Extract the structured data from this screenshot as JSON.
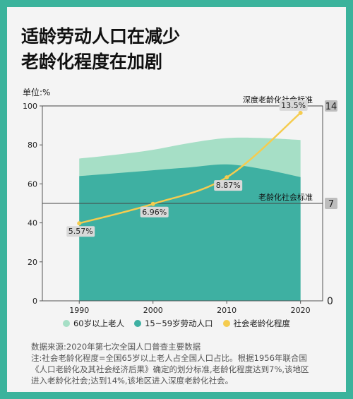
{
  "title_lines": [
    "适龄劳动人口在减少",
    "老龄化程度在加剧"
  ],
  "unit_label": "单位:%",
  "legend": [
    {
      "label": "60岁以上老人",
      "color": "#a6dfc6"
    },
    {
      "label": "15~59岁劳动人口",
      "color": "#3eb0a2"
    },
    {
      "label": "社会老龄化程度",
      "color": "#f5cc4f"
    }
  ],
  "notes": [
    "数据来源:2020年第七次全国人口普查主要数据",
    "注:社会老龄化程度=全国65岁以上老人占全国人口占比。根据1956年联合国",
    "《人口老龄化及其社会经济后果》确定的划分标准,老龄化程度达到7%,该地区",
    "进入老龄化社会;达到14%,该地区进入深度老龄化社会。"
  ],
  "chart_data": {
    "type": "area",
    "x": [
      1990,
      2000,
      2010,
      2020
    ],
    "xlim": [
      1985,
      2023
    ],
    "ylim": [
      0,
      100
    ],
    "yticks": [
      0,
      20,
      40,
      60,
      80,
      100
    ],
    "y2lim": [
      0,
      14
    ],
    "y2ticks": [
      "0",
      "7",
      "14"
    ],
    "series": [
      {
        "name": "60岁以上老人",
        "type": "area",
        "color": "#a6dfc6",
        "x": [
          1990,
          1995,
          2000,
          2005,
          2010,
          2015,
          2020
        ],
        "values": [
          73,
          75,
          77.5,
          81,
          83.5,
          83.5,
          82.5
        ]
      },
      {
        "name": "15~59岁劳动人口",
        "type": "area",
        "color": "#3eb0a2",
        "x": [
          1990,
          1995,
          2000,
          2005,
          2010,
          2015,
          2020
        ],
        "values": [
          64,
          65.5,
          67,
          68.5,
          70,
          67.5,
          63.5
        ]
      },
      {
        "name": "社会老龄化程度",
        "type": "line",
        "axis": "right",
        "color": "#f5cc4f",
        "values": [
          5.57,
          6.96,
          8.87,
          13.5
        ],
        "labels": [
          "5.57%",
          "6.96%",
          "8.87%",
          "13.5%"
        ]
      }
    ],
    "reference_lines": [
      {
        "label": "深度老龄化社会标准",
        "value": 14
      },
      {
        "label": "老龄化社会标准",
        "value": 7
      }
    ]
  }
}
